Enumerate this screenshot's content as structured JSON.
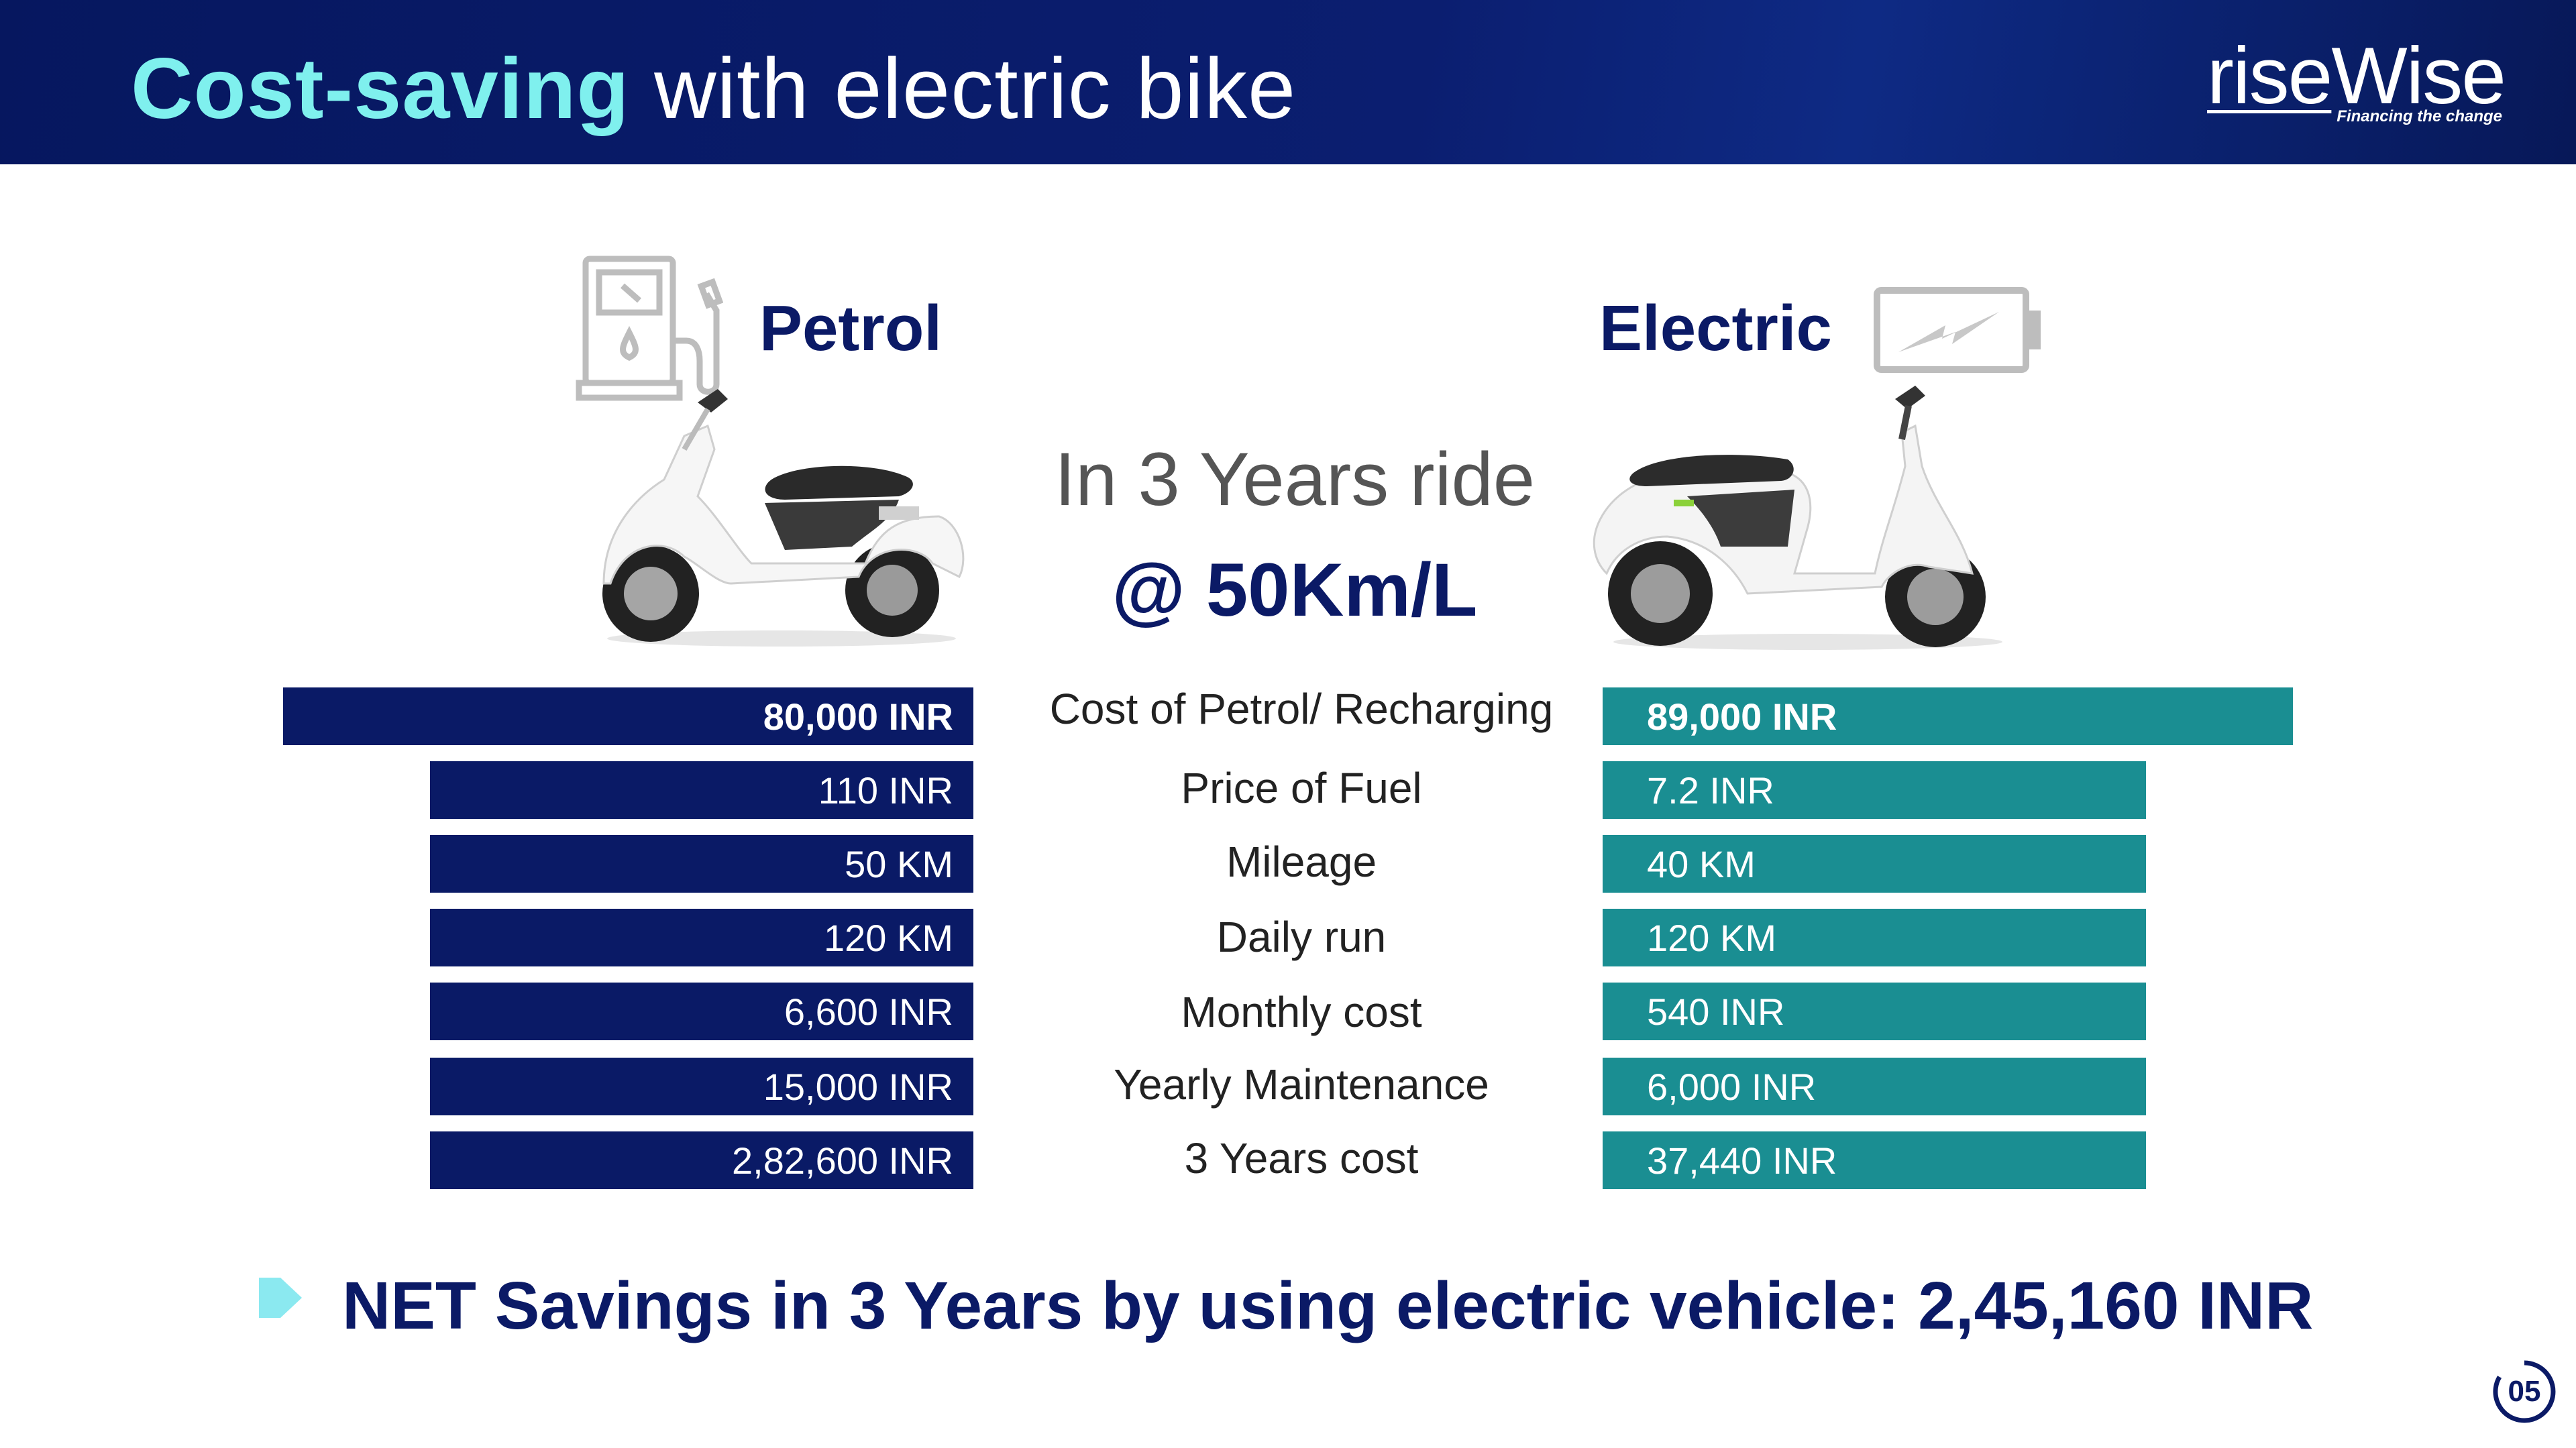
{
  "header": {
    "title_highlight": "Cost-saving",
    "title_rest": " with electric bike",
    "logo_rise": "rise",
    "logo_wise": "Wise",
    "logo_tagline": "Financing the change"
  },
  "petrol": {
    "label": "Petrol",
    "icon": "fuel-pump-icon"
  },
  "electric": {
    "label": "Electric",
    "icon": "battery-charging-icon"
  },
  "center": {
    "line1": "In 3 Years ride",
    "line2": "@ 50Km/L"
  },
  "rows": [
    {
      "label": "Cost of Petrol/ Recharging",
      "petrol": "80,000 INR",
      "electric": "89,000 INR"
    },
    {
      "label": "Price of Fuel",
      "petrol": "110 INR",
      "electric": "7.2 INR"
    },
    {
      "label": "Mileage",
      "petrol": "50 KM",
      "electric": "40 KM"
    },
    {
      "label": "Daily run",
      "petrol": "120 KM",
      "electric": "120 KM"
    },
    {
      "label": "Monthly cost",
      "petrol": "6,600 INR",
      "electric": "540 INR"
    },
    {
      "label": "Yearly Maintenance",
      "petrol": "15,000 INR",
      "electric": "6,000 INR"
    },
    {
      "label": "3 Years cost",
      "petrol": "2,82,600 INR",
      "electric": "37,440 INR"
    }
  ],
  "savings": {
    "text": "NET Savings in 3 Years by using electric vehicle: 2,45,160  INR"
  },
  "page_number": "05",
  "colors": {
    "navy": "#0a1a66",
    "teal": "#1a8e92",
    "highlight": "#7ff0ee"
  }
}
